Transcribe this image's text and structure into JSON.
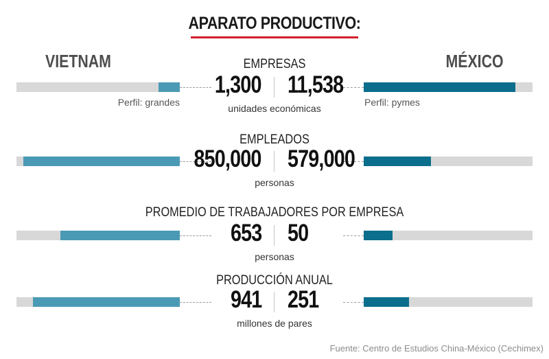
{
  "title": "APARATO PRODUCTIVO:",
  "countries": {
    "left": "VIETNAM",
    "right": "MÉXICO"
  },
  "colors": {
    "vietnam": "#4b9ab5",
    "mexico": "#0b6e8c",
    "track": "#d8d8d8",
    "accent": "#d21e2b"
  },
  "profiles": {
    "left": "Perfil: grandes",
    "right": "Perfil: pymes"
  },
  "source": "Fuente: Centro de Estudios China-México (Cechimex)",
  "chart_data": {
    "type": "bar",
    "series": [
      {
        "name": "VIETNAM",
        "values": [
          1300,
          850000,
          653,
          941
        ]
      },
      {
        "name": "MÉXICO",
        "values": [
          11538,
          579000,
          50,
          251
        ]
      }
    ],
    "metrics": [
      {
        "label": "EMPRESAS",
        "left_text": "1,300",
        "right_text": "11,538",
        "unit": "unidades económicas",
        "left_fill": 0.13,
        "right_fill": 0.9
      },
      {
        "label": "EMPLEADOS",
        "left_text": "850,000",
        "right_text": "579,000",
        "unit": "personas",
        "left_fill": 0.96,
        "right_fill": 0.4
      },
      {
        "label": "PROMEDIO DE TRABAJADORES POR EMPRESA",
        "left_text": "653",
        "right_text": "50",
        "unit": "personas",
        "left_fill": 0.73,
        "right_fill": 0.17
      },
      {
        "label": "PRODUCCIÓN ANUAL",
        "left_text": "941",
        "right_text": "251",
        "unit": "millones de pares",
        "left_fill": 0.9,
        "right_fill": 0.27
      }
    ]
  }
}
